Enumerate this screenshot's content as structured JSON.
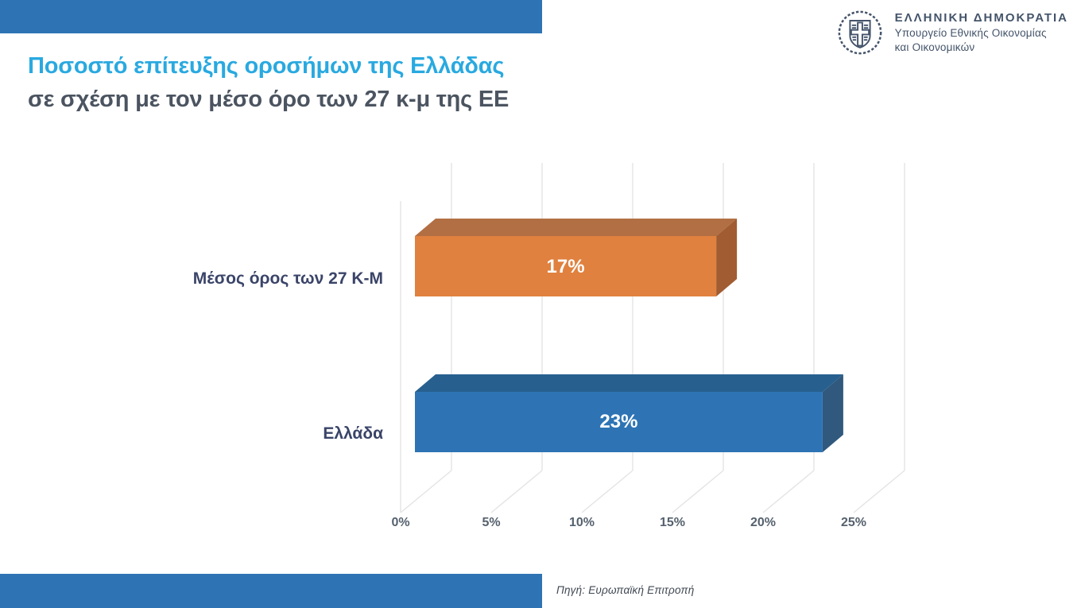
{
  "page": {
    "title_line1": "Ποσοστό επίτευξης οροσήμων της Ελλάδας",
    "title_line2": "σε σχέση με τον μέσο όρο των 27 κ-μ της ΕΕ",
    "source": "Πηγή: Ευρωπαϊκή Επιτροπή"
  },
  "logo": {
    "org": "ΕΛΛΗΝΙΚΗ ΔΗΜΟΚΡΑΤΙΑ",
    "dept_line1": "Υπουργείο Εθνικής Οικονομίας",
    "dept_line2": "και Οικονομικών"
  },
  "colors": {
    "accent_band_blue": "#2E74B5",
    "title_blue": "#29A9E0",
    "title_gray": "#4B5460",
    "category_label": "#3A4468",
    "tick_label": "#55616E",
    "logo_navy": "#44546A",
    "gridline": "#E4E4E4",
    "source_text": "#3F4752",
    "bar_value_text": "#FFFFFF"
  },
  "chart_data": {
    "type": "bar",
    "orientation": "horizontal",
    "style": "3d",
    "categories": [
      "Μέσος όρος των 27 Κ-Μ",
      "Ελλάδα"
    ],
    "values": [
      17,
      23
    ],
    "value_labels": [
      "17%",
      "23%"
    ],
    "x_ticks": [
      "0%",
      "5%",
      "10%",
      "15%",
      "20%",
      "25%"
    ],
    "xlim": [
      0,
      25
    ],
    "x_tick_step": 5,
    "grid": true,
    "legend": false,
    "title": "",
    "xlabel": "",
    "ylabel": "",
    "bar_colors": [
      {
        "face": "#E0813F",
        "top": "#B26F43",
        "side": "#A15C31"
      },
      {
        "face": "#2E74B5",
        "top": "#27608F",
        "side": "#31597E"
      }
    ]
  }
}
